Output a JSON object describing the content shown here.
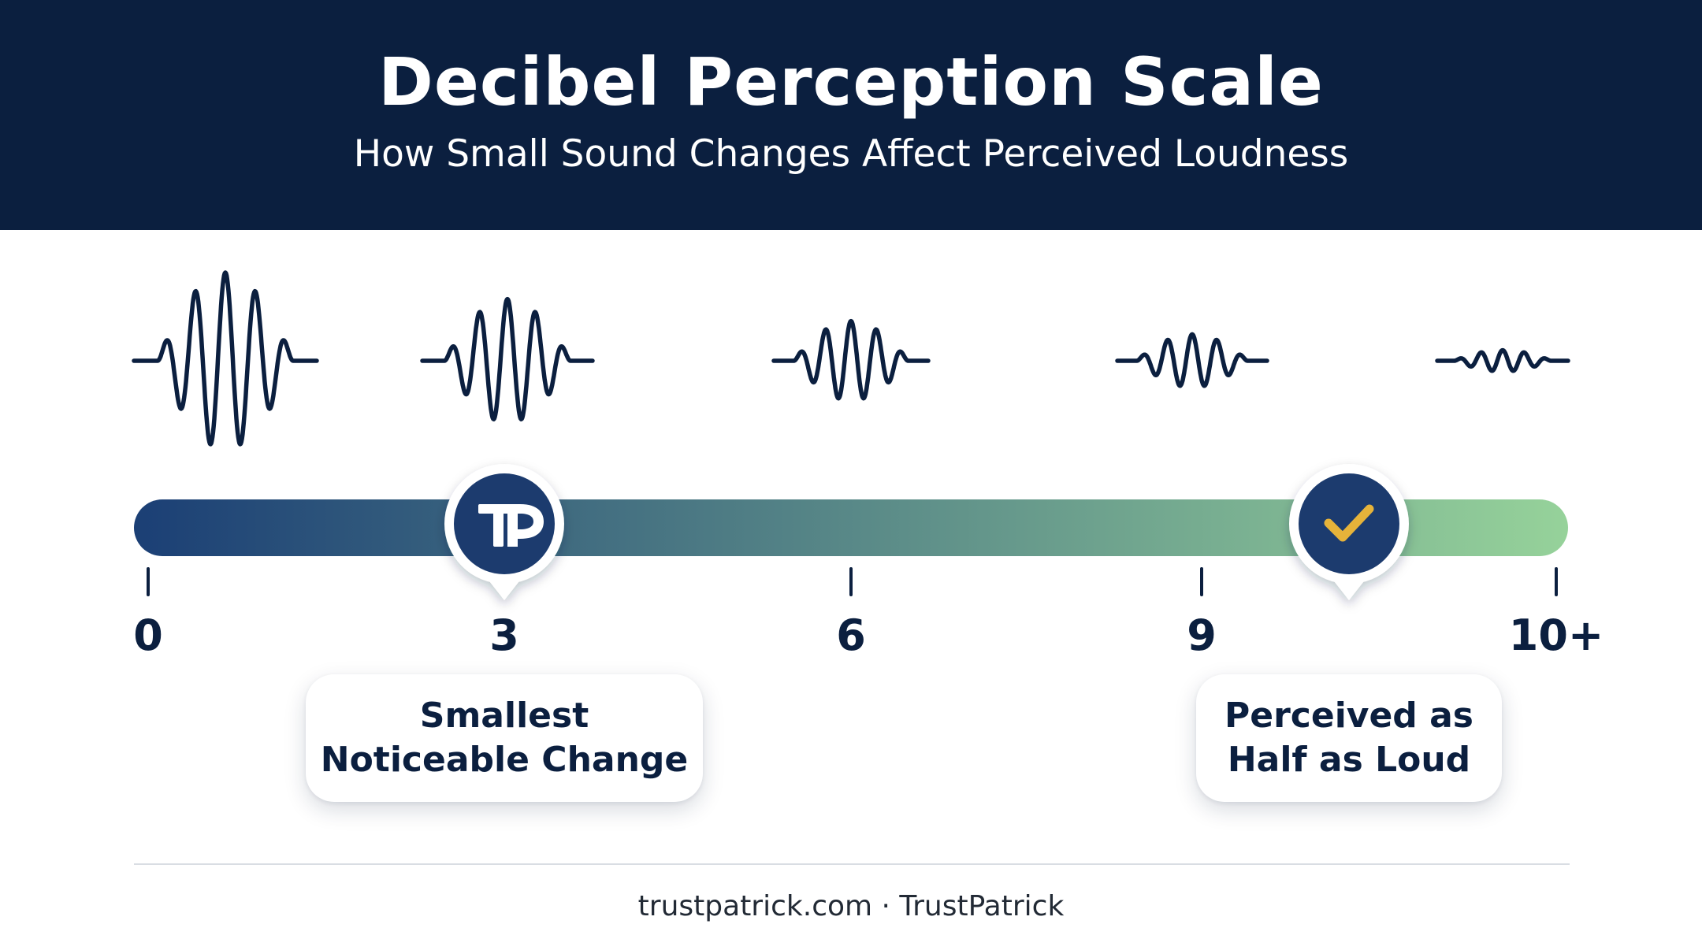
{
  "header": {
    "title": "Decibel Perception Scale",
    "subtitle": "How Small Sound Changes Affect Perceived Loudness"
  },
  "scale": {
    "ticks": [
      "0",
      "3",
      "6",
      "9",
      "10+"
    ],
    "gradient_start": "#1b3f75",
    "gradient_end": "#96d29a",
    "markers": [
      {
        "at": 3,
        "icon": "trustpatrick-logo-icon",
        "color": "#1b3a6e"
      },
      {
        "at": 10,
        "icon": "checkmark-icon",
        "color": "#1b3a6e",
        "accent": "#e6b33a"
      }
    ]
  },
  "waveforms": {
    "description_levels": [
      1.0,
      0.7,
      0.45,
      0.3,
      0.12
    ],
    "color": "#0b1f3f"
  },
  "callouts": {
    "smallest_line1": "Smallest",
    "smallest_line2": "Noticeable Change",
    "half_line1": "Perceived as",
    "half_line2": "Half as Loud"
  },
  "footer": {
    "text": "trustpatrick.com · TrustPatrick"
  }
}
